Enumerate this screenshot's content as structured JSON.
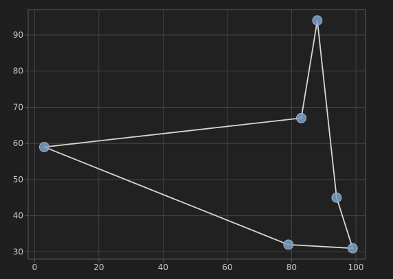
{
  "colors": {
    "background": "#1f1f1f",
    "plot_background": "#212121",
    "grid": "#4a4a4a",
    "axes": "#5a5a5a",
    "line": "#d6d6d6",
    "marker": "#7aa0c4"
  },
  "chart_data": {
    "type": "line",
    "title": "",
    "xlabel": "",
    "ylabel": "",
    "x": [
      88,
      83,
      3,
      79,
      99,
      94,
      88
    ],
    "y": [
      94,
      67,
      59,
      32,
      31,
      45,
      94
    ],
    "series": [
      {
        "x": [
          88,
          83,
          3,
          79,
          99,
          94,
          88
        ],
        "y": [
          94,
          67,
          59,
          32,
          31,
          45,
          94
        ]
      }
    ],
    "xlim": [
      -2,
      103
    ],
    "ylim": [
      28,
      97
    ],
    "xticks": [
      0,
      20,
      40,
      60,
      80,
      100
    ],
    "yticks": [
      30,
      40,
      50,
      60,
      70,
      80,
      90
    ],
    "xtick_labels": [
      "0",
      "20",
      "40",
      "60",
      "80",
      "100"
    ],
    "ytick_labels": [
      "30",
      "40",
      "50",
      "60",
      "70",
      "80",
      "90"
    ],
    "grid": true,
    "markers": true,
    "legend": false
  }
}
